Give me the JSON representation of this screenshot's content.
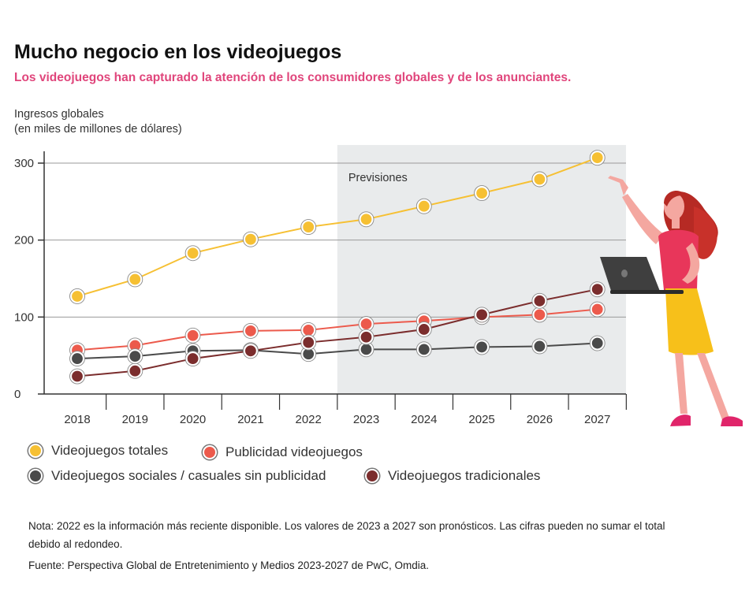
{
  "header": {
    "title": "Mucho negocio en los videojuegos",
    "subtitle": "Los videojuegos han capturado la atención de los consumidores globales y de los anunciantes.",
    "ylabel_line1": "Ingresos globales",
    "ylabel_line2": "(en miles de millones de dólares)"
  },
  "chart_data": {
    "type": "line",
    "ylabel": "Ingresos globales (en miles de millones de dólares)",
    "categories": [
      "2018",
      "2019",
      "2020",
      "2021",
      "2022",
      "2023",
      "2024",
      "2025",
      "2026",
      "2027"
    ],
    "ylim": [
      0,
      300
    ],
    "yticks": [
      0,
      100,
      200,
      300
    ],
    "grid": "horizontal",
    "forecast_label": "Previsiones",
    "forecast_range": [
      "2023",
      "2027"
    ],
    "legend_position": "bottom",
    "series": [
      {
        "name": "Videojuegos totales",
        "color": "#f6c033",
        "values": [
          127,
          149,
          183,
          201,
          217,
          227,
          244,
          261,
          279,
          307
        ]
      },
      {
        "name": "Publicidad videojuegos",
        "color": "#ec5a4c",
        "values": [
          57,
          63,
          76,
          82,
          83,
          91,
          95,
          100,
          103,
          110
        ]
      },
      {
        "name": "Videojuegos sociales / casuales sin publicidad",
        "color": "#4a4a4a",
        "values": [
          46,
          49,
          56,
          57,
          52,
          58,
          58,
          61,
          62,
          66
        ]
      },
      {
        "name": "Videojuegos tradicionales",
        "color": "#7b2d2d",
        "values": [
          23,
          30,
          46,
          56,
          67,
          74,
          84,
          103,
          121,
          136
        ]
      }
    ]
  },
  "legend": {
    "total": "Videojuegos totales",
    "ads": "Publicidad videojuegos",
    "social": "Videojuegos sociales / casuales sin publicidad",
    "traditional": "Videojuegos tradicionales"
  },
  "colors": {
    "total": "#f6c033",
    "ads": "#ec5a4c",
    "social": "#4a4a4a",
    "traditional": "#7b2d2d",
    "subtitle": "#e0457b",
    "forecast_band": "#e9ebec"
  },
  "footer": {
    "note": "Nota: 2022 es la información más reciente disponible. Los valores de 2023 a 2027 son pronósticos. Las cifras pueden no sumar el total debido al redondeo.",
    "source": "Fuente: Perspectiva Global de Entretenimiento y Medios 2023-2027 de PwC, Omdia."
  },
  "illustration": "woman-pointing-with-laptop"
}
